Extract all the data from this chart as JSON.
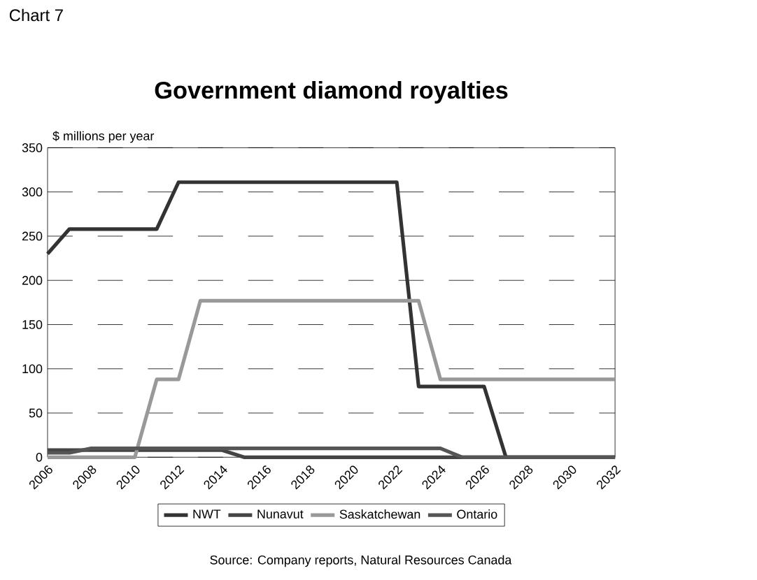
{
  "chart_data": {
    "type": "line",
    "title": "Government diamond royalties",
    "ylabel": "$ millions per year",
    "annotations": [
      "Chart 7",
      "Source:  Company reports, Natural Resources Canada"
    ],
    "x": [
      2006,
      2007,
      2008,
      2009,
      2010,
      2011,
      2012,
      2013,
      2014,
      2015,
      2016,
      2017,
      2018,
      2019,
      2020,
      2021,
      2022,
      2023,
      2024,
      2025,
      2026,
      2027,
      2028,
      2029,
      2030,
      2031,
      2032
    ],
    "series": [
      {
        "name": "NWT",
        "color": "#333333",
        "values": [
          230,
          258,
          258,
          258,
          258,
          258,
          311,
          311,
          311,
          311,
          311,
          311,
          311,
          311,
          311,
          311,
          311,
          80,
          80,
          80,
          80,
          0,
          0,
          0,
          0,
          0,
          0
        ]
      },
      {
        "name": "Nunavut",
        "color": "#444444",
        "values": [
          8,
          8,
          8,
          8,
          8,
          8,
          8,
          8,
          8,
          0,
          0,
          0,
          0,
          0,
          0,
          0,
          0,
          0,
          0,
          0,
          0,
          0,
          0,
          0,
          0,
          0,
          0
        ]
      },
      {
        "name": "Saskatchewan",
        "color": "#999999",
        "values": [
          0,
          0,
          0,
          0,
          0,
          88,
          88,
          177,
          177,
          177,
          177,
          177,
          177,
          177,
          177,
          177,
          177,
          177,
          88,
          88,
          88,
          88,
          88,
          88,
          88,
          88,
          88
        ]
      },
      {
        "name": "Ontario",
        "color": "#555555",
        "values": [
          5,
          5,
          10,
          10,
          10,
          10,
          10,
          10,
          10,
          10,
          10,
          10,
          10,
          10,
          10,
          10,
          10,
          10,
          10,
          0,
          0,
          0,
          0,
          0,
          0,
          0,
          0
        ]
      }
    ],
    "xlim": [
      2006,
      2032
    ],
    "xticks": [
      2006,
      2008,
      2010,
      2012,
      2014,
      2016,
      2018,
      2020,
      2022,
      2024,
      2026,
      2028,
      2030,
      2032
    ],
    "ylim": [
      0,
      350
    ],
    "yticks": [
      0,
      50,
      100,
      150,
      200,
      250,
      300,
      350
    ],
    "grid": "y",
    "legend": "bottom",
    "marker": "none",
    "line_style": "solid"
  }
}
